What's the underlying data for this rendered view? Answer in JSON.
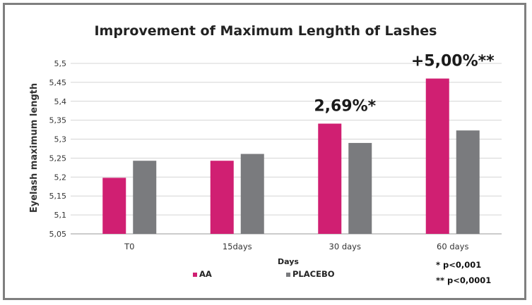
{
  "chart_data": {
    "type": "bar",
    "title": "Improvement of Maximum Lenghth of Lashes",
    "xlabel": "Days",
    "ylabel": "Eyelash maximum length",
    "categories": [
      "T0",
      "15days",
      "30 days",
      "60 days"
    ],
    "series": [
      {
        "name": "AA",
        "values": [
          5.198,
          5.243,
          5.341,
          5.46
        ],
        "color": "#d01f72"
      },
      {
        "name": "PLACEBO",
        "values": [
          5.243,
          5.261,
          5.29,
          5.323
        ],
        "color": "#7a7b7e"
      }
    ],
    "ylim": [
      5.05,
      5.5
    ],
    "yticks": [
      "5,05",
      "5,1",
      "5,15",
      "5,2",
      "5,25",
      "5,3",
      "5,35",
      "5,4",
      "5,45",
      "5,5"
    ],
    "ytick_values": [
      5.05,
      5.1,
      5.15,
      5.2,
      5.25,
      5.3,
      5.35,
      5.4,
      5.45,
      5.5
    ],
    "grid": true,
    "legend_position": "bottom",
    "annotations": [
      {
        "text": "2,69%*",
        "category": "30 days"
      },
      {
        "text": "+5,00%**",
        "category": "60 days"
      }
    ],
    "footnotes": [
      "* p<0,001",
      "** p<0,0001"
    ]
  }
}
